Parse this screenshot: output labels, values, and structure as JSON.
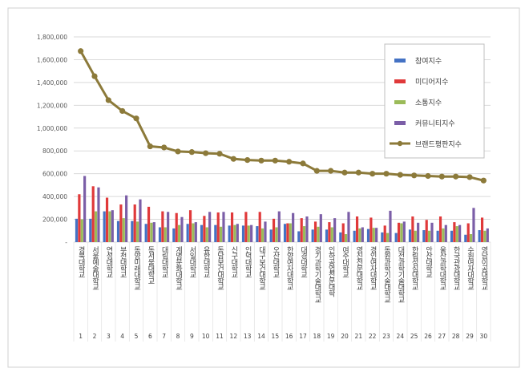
{
  "chart_data": {
    "type": "bar",
    "ylim": [
      0,
      1800000
    ],
    "yticks": [
      0,
      200000,
      400000,
      600000,
      800000,
      1000000,
      1200000,
      1400000,
      1600000,
      1800000
    ],
    "ytick_labels": [
      "-",
      "200,000",
      "400,000",
      "600,000",
      "800,000",
      "1,000,000",
      "1,200,000",
      "1,400,000",
      "1,600,000",
      "1,800,000"
    ],
    "grid": true,
    "legend_position": "top-right",
    "categories": [
      "경북대학교",
      "서울예술대학교",
      "연성대학교",
      "부천대학교",
      "동양미래대학교",
      "동서울대학교",
      "대림대학교",
      "계명문화대학교",
      "서일대학교",
      "유한대학교",
      "동남보건대학교",
      "신구대학교",
      "인덕대학교",
      "대구보건대학교",
      "오산대학교",
      "한양여자대학교",
      "대경대학교",
      "경기과학기술대학교",
      "인하공업전문대학",
      "여주대학교",
      "영진전문대학교",
      "경인여자대학교",
      "동원과학기술대학교",
      "대전과학기술대학교",
      "한림성심대학교",
      "안산대학교",
      "울산과학대학교",
      "한국관광대학교",
      "수원여자대학교",
      "영남이공대학교"
    ],
    "ranks": [
      "1",
      "2",
      "3",
      "4",
      "5",
      "6",
      "7",
      "8",
      "9",
      "10",
      "11",
      "12",
      "13",
      "14",
      "15",
      "16",
      "17",
      "18",
      "19",
      "20",
      "21",
      "22",
      "23",
      "24",
      "25",
      "26",
      "27",
      "28",
      "29",
      "30"
    ],
    "series": [
      {
        "name": "참여지수",
        "kind": "bar",
        "color": "#4472c4",
        "values": [
          205000,
          205000,
          270000,
          185000,
          185000,
          160000,
          130000,
          120000,
          160000,
          150000,
          150000,
          145000,
          145000,
          140000,
          110000,
          160000,
          95000,
          110000,
          110000,
          85000,
          100000,
          115000,
          85000,
          80000,
          110000,
          105000,
          100000,
          100000,
          65000,
          105000
        ]
      },
      {
        "name": "미디어지수",
        "kind": "bar",
        "color": "#e0393a",
        "values": [
          420000,
          490000,
          390000,
          330000,
          330000,
          310000,
          270000,
          255000,
          280000,
          230000,
          260000,
          260000,
          265000,
          265000,
          205000,
          165000,
          210000,
          180000,
          175000,
          165000,
          225000,
          215000,
          145000,
          170000,
          225000,
          195000,
          225000,
          175000,
          165000,
          215000
        ]
      },
      {
        "name": "소통지수",
        "kind": "bar",
        "color": "#9bbb59",
        "values": [
          200000,
          270000,
          270000,
          210000,
          180000,
          170000,
          130000,
          150000,
          165000,
          130000,
          135000,
          150000,
          145000,
          120000,
          130000,
          165000,
          140000,
          135000,
          130000,
          70000,
          120000,
          125000,
          80000,
          165000,
          100000,
          100000,
          120000,
          140000,
          70000,
          100000
        ]
      },
      {
        "name": "커뮤니티지수",
        "kind": "bar",
        "color": "#7b5ea7",
        "values": [
          580000,
          480000,
          280000,
          410000,
          375000,
          175000,
          265000,
          220000,
          175000,
          265000,
          265000,
          160000,
          150000,
          180000,
          270000,
          255000,
          225000,
          245000,
          210000,
          265000,
          130000,
          125000,
          275000,
          180000,
          170000,
          170000,
          150000,
          150000,
          300000,
          120000
        ]
      },
      {
        "name": "브랜드평판지수",
        "kind": "line",
        "color": "#8c7a3a",
        "values": [
          1675000,
          1455000,
          1245000,
          1150000,
          1085000,
          840000,
          830000,
          795000,
          790000,
          780000,
          775000,
          730000,
          720000,
          715000,
          715000,
          705000,
          690000,
          625000,
          625000,
          610000,
          610000,
          600000,
          600000,
          590000,
          585000,
          580000,
          575000,
          575000,
          570000,
          540000
        ]
      }
    ]
  }
}
